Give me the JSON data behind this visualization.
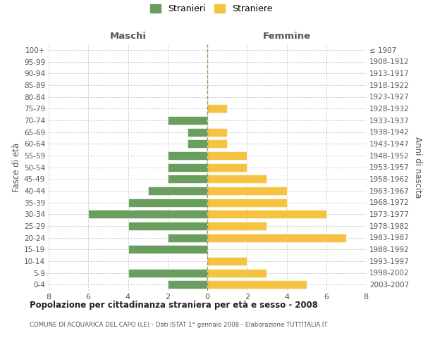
{
  "age_groups": [
    "0-4",
    "5-9",
    "10-14",
    "15-19",
    "20-24",
    "25-29",
    "30-34",
    "35-39",
    "40-44",
    "45-49",
    "50-54",
    "55-59",
    "60-64",
    "65-69",
    "70-74",
    "75-79",
    "80-84",
    "85-89",
    "90-94",
    "95-99",
    "100+"
  ],
  "birth_years": [
    "2003-2007",
    "1998-2002",
    "1993-1997",
    "1988-1992",
    "1983-1987",
    "1978-1982",
    "1973-1977",
    "1968-1972",
    "1963-1967",
    "1958-1962",
    "1953-1957",
    "1948-1952",
    "1943-1947",
    "1938-1942",
    "1933-1937",
    "1928-1932",
    "1923-1927",
    "1918-1922",
    "1913-1917",
    "1908-1912",
    "≤ 1907"
  ],
  "maschi": [
    2,
    4,
    0,
    4,
    2,
    4,
    6,
    4,
    3,
    2,
    2,
    2,
    1,
    1,
    2,
    0,
    0,
    0,
    0,
    0,
    0
  ],
  "femmine": [
    5,
    3,
    2,
    0,
    7,
    3,
    6,
    4,
    4,
    3,
    2,
    2,
    1,
    1,
    0,
    1,
    0,
    0,
    0,
    0,
    0
  ],
  "maschi_color": "#6a9e5e",
  "femmine_color": "#f5c242",
  "title": "Popolazione per cittadinanza straniera per età e sesso - 2008",
  "subtitle": "COMUNE DI ACQUARICA DEL CAPO (LE) - Dati ISTAT 1° gennaio 2008 - Elaborazione TUTTITALIA.IT",
  "xlabel_left": "Maschi",
  "xlabel_right": "Femmine",
  "ylabel_left": "Fasce di età",
  "ylabel_right": "Anni di nascita",
  "legend_maschi": "Stranieri",
  "legend_femmine": "Straniere",
  "xlim": 8,
  "background_color": "#ffffff",
  "grid_color": "#cccccc",
  "dashed_line_color": "#999966"
}
